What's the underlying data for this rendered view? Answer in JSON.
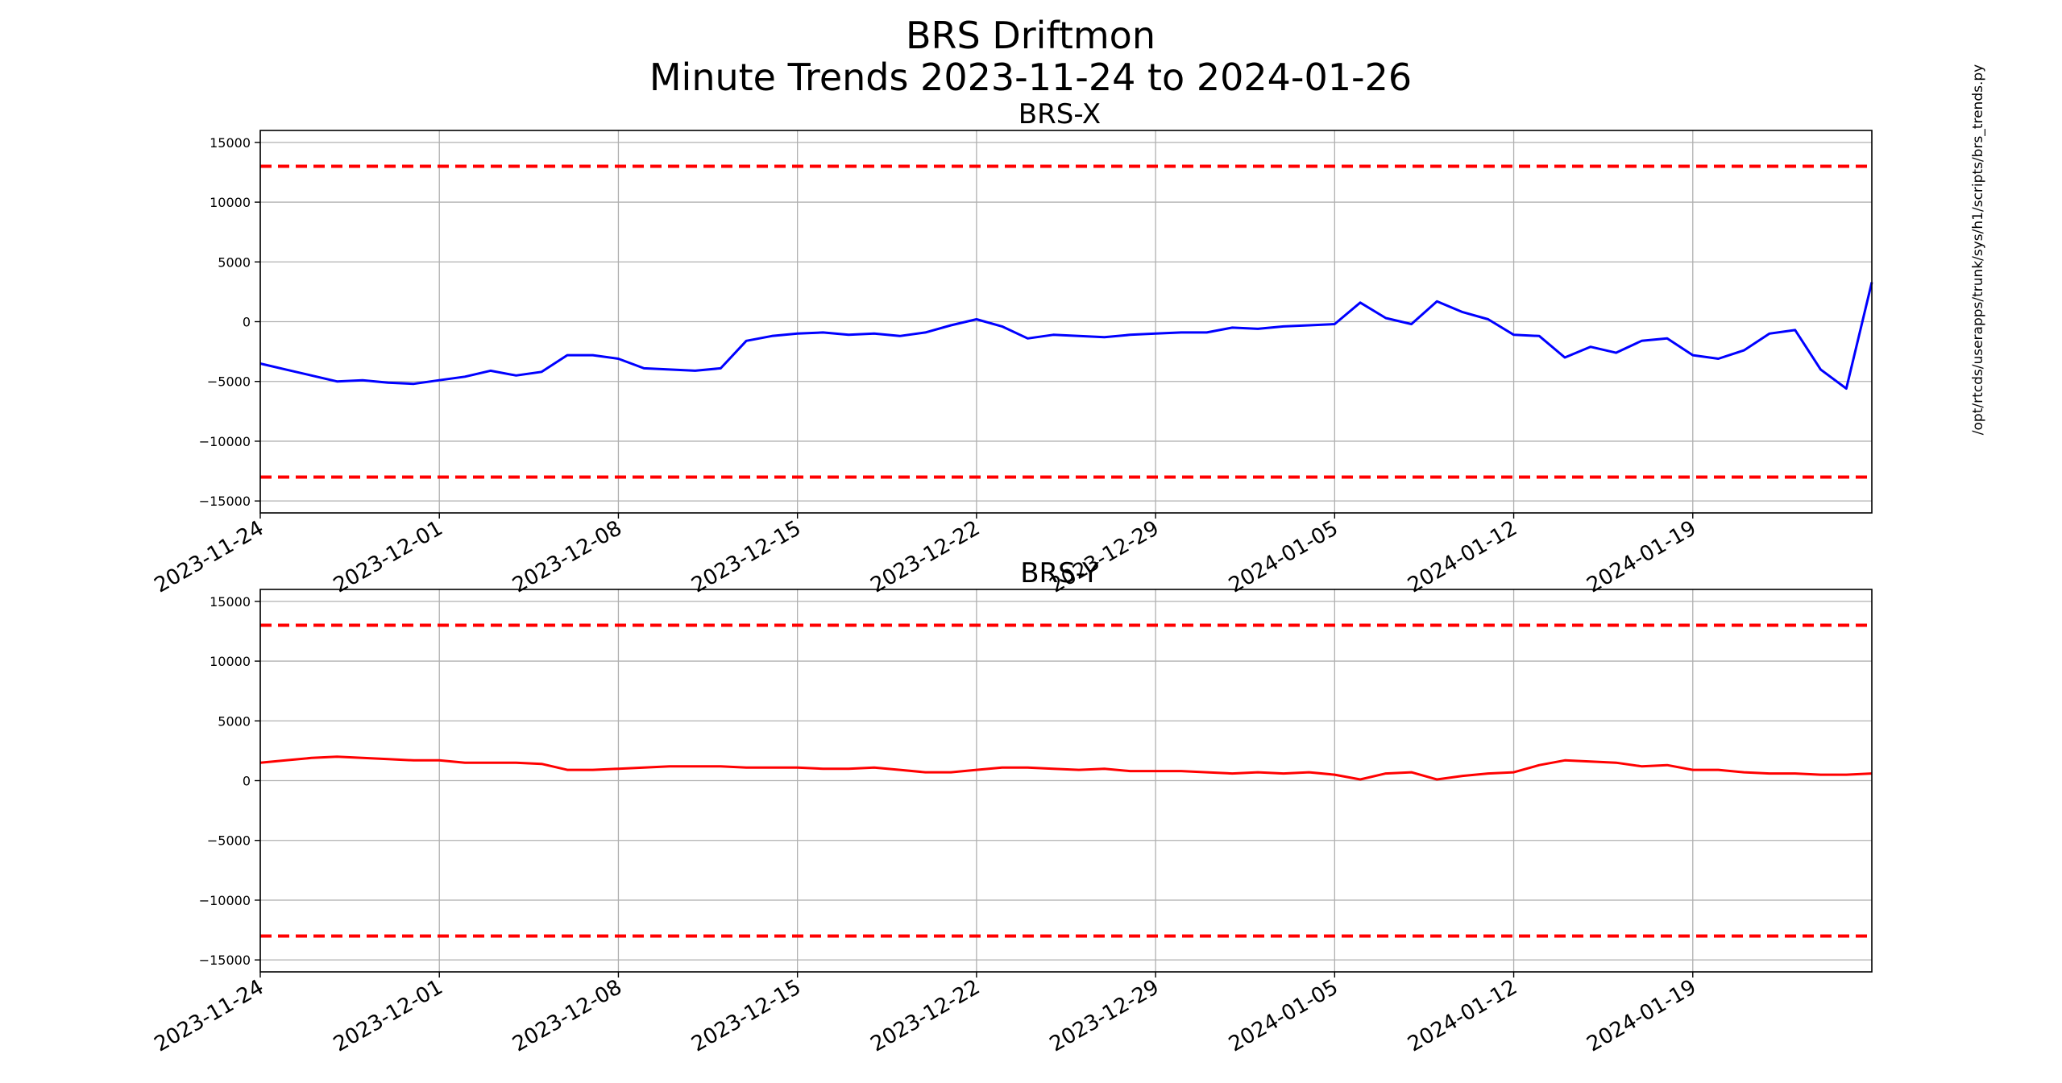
{
  "figure": {
    "title_line1": "BRS Driftmon",
    "title_line2": "Minute Trends 2023-11-24  to 2024-01-26",
    "side_label": "/opt/rtcds/userapps/trunk/sys/h1/scripts/brs_trends.py"
  },
  "chart_data": [
    {
      "type": "line",
      "title": "BRS-X",
      "xlim": [
        "2023-11-24",
        "2024-01-26"
      ],
      "ylim": [
        -16000,
        16000
      ],
      "yticks": [
        -15000,
        -10000,
        -5000,
        0,
        5000,
        10000,
        15000
      ],
      "xticks": [
        "2023-11-24",
        "2023-12-01",
        "2023-12-08",
        "2023-12-15",
        "2023-12-22",
        "2023-12-29",
        "2024-01-05",
        "2024-01-12",
        "2024-01-19"
      ],
      "grid": true,
      "limits": {
        "values": [
          13000,
          -13000
        ],
        "color": "#ff0000",
        "style": "dashed"
      },
      "series": [
        {
          "color": "#0000ff",
          "x": [
            "2023-11-24",
            "2023-11-25",
            "2023-11-26",
            "2023-11-27",
            "2023-11-28",
            "2023-11-29",
            "2023-11-30",
            "2023-12-01",
            "2023-12-02",
            "2023-12-03",
            "2023-12-04",
            "2023-12-05",
            "2023-12-06",
            "2023-12-07",
            "2023-12-08",
            "2023-12-09",
            "2023-12-10",
            "2023-12-11",
            "2023-12-12",
            "2023-12-13",
            "2023-12-14",
            "2023-12-15",
            "2023-12-16",
            "2023-12-17",
            "2023-12-18",
            "2023-12-19",
            "2023-12-20",
            "2023-12-21",
            "2023-12-22",
            "2023-12-23",
            "2023-12-24",
            "2023-12-25",
            "2023-12-26",
            "2023-12-27",
            "2023-12-28",
            "2023-12-29",
            "2023-12-30",
            "2023-12-31",
            "2024-01-01",
            "2024-01-02",
            "2024-01-03",
            "2024-01-04",
            "2024-01-05",
            "2024-01-06",
            "2024-01-07",
            "2024-01-08",
            "2024-01-09",
            "2024-01-10",
            "2024-01-11",
            "2024-01-12",
            "2024-01-13",
            "2024-01-14",
            "2024-01-15",
            "2024-01-16",
            "2024-01-17",
            "2024-01-18",
            "2024-01-19",
            "2024-01-20",
            "2024-01-21",
            "2024-01-22",
            "2024-01-23",
            "2024-01-24",
            "2024-01-25",
            "2024-01-26"
          ],
          "y": [
            -3500,
            -4000,
            -4500,
            -5000,
            -4900,
            -5100,
            -5200,
            -4900,
            -4600,
            -4100,
            -4500,
            -4200,
            -2800,
            -2800,
            -3100,
            -3900,
            -4000,
            -4100,
            -3900,
            -1600,
            -1200,
            -1000,
            -900,
            -1100,
            -1000,
            -1200,
            -900,
            -300,
            200,
            -400,
            -1400,
            -1100,
            -1200,
            -1300,
            -1100,
            -1000,
            -900,
            -900,
            -500,
            -600,
            -400,
            -300,
            -200,
            1600,
            300,
            -200,
            1700,
            800,
            200,
            -1100,
            -1200,
            -3000,
            -2100,
            -2600,
            -1600,
            -1400,
            -2800,
            -3100,
            -2400,
            -1000,
            -700,
            -4000,
            -5600,
            3300
          ]
        }
      ]
    },
    {
      "type": "line",
      "title": "BRS-Y",
      "xlim": [
        "2023-11-24",
        "2024-01-26"
      ],
      "ylim": [
        -16000,
        16000
      ],
      "yticks": [
        -15000,
        -10000,
        -5000,
        0,
        5000,
        10000,
        15000
      ],
      "xticks": [
        "2023-11-24",
        "2023-12-01",
        "2023-12-08",
        "2023-12-15",
        "2023-12-22",
        "2023-12-29",
        "2024-01-05",
        "2024-01-12",
        "2024-01-19"
      ],
      "grid": true,
      "limits": {
        "values": [
          13000,
          -13000
        ],
        "color": "#ff0000",
        "style": "dashed"
      },
      "series": [
        {
          "color": "#ff0000",
          "x": [
            "2023-11-24",
            "2023-11-25",
            "2023-11-26",
            "2023-11-27",
            "2023-11-28",
            "2023-11-29",
            "2023-11-30",
            "2023-12-01",
            "2023-12-02",
            "2023-12-03",
            "2023-12-04",
            "2023-12-05",
            "2023-12-06",
            "2023-12-07",
            "2023-12-08",
            "2023-12-09",
            "2023-12-10",
            "2023-12-11",
            "2023-12-12",
            "2023-12-13",
            "2023-12-14",
            "2023-12-15",
            "2023-12-16",
            "2023-12-17",
            "2023-12-18",
            "2023-12-19",
            "2023-12-20",
            "2023-12-21",
            "2023-12-22",
            "2023-12-23",
            "2023-12-24",
            "2023-12-25",
            "2023-12-26",
            "2023-12-27",
            "2023-12-28",
            "2023-12-29",
            "2023-12-30",
            "2023-12-31",
            "2024-01-01",
            "2024-01-02",
            "2024-01-03",
            "2024-01-04",
            "2024-01-05",
            "2024-01-06",
            "2024-01-07",
            "2024-01-08",
            "2024-01-09",
            "2024-01-10",
            "2024-01-11",
            "2024-01-12",
            "2024-01-13",
            "2024-01-14",
            "2024-01-15",
            "2024-01-16",
            "2024-01-17",
            "2024-01-18",
            "2024-01-19",
            "2024-01-20",
            "2024-01-21",
            "2024-01-22",
            "2024-01-23",
            "2024-01-24",
            "2024-01-25",
            "2024-01-26"
          ],
          "y": [
            1500,
            1700,
            1900,
            2000,
            1900,
            1800,
            1700,
            1700,
            1500,
            1500,
            1500,
            1400,
            900,
            900,
            1000,
            1100,
            1200,
            1200,
            1200,
            1100,
            1100,
            1100,
            1000,
            1000,
            1100,
            900,
            700,
            700,
            900,
            1100,
            1100,
            1000,
            900,
            1000,
            800,
            800,
            800,
            700,
            600,
            700,
            600,
            700,
            500,
            100,
            600,
            700,
            100,
            400,
            600,
            700,
            1300,
            1700,
            1600,
            1500,
            1200,
            1300,
            900,
            900,
            700,
            600,
            600,
            500,
            500,
            600
          ]
        }
      ]
    }
  ]
}
